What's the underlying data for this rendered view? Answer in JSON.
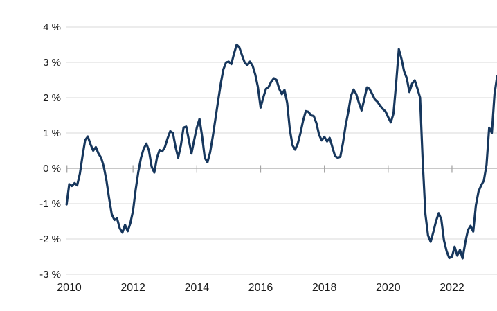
{
  "chart_data": {
    "type": "line",
    "title": "",
    "unit": "%",
    "grid": "horizontal",
    "legend": "none",
    "ylim": [
      -3,
      4
    ],
    "y_axis": {
      "tick_values": [
        4,
        3,
        2,
        1,
        0,
        -1,
        -2,
        -3
      ],
      "tick_labels": [
        "4 %",
        "3 %",
        "2 %",
        "1 %",
        "0 %",
        "-1 %",
        "-2 %",
        "-3 %"
      ]
    },
    "x_axis": {
      "tick_years": [
        2010,
        2012,
        2014,
        2016,
        2018,
        2020,
        2022
      ],
      "tick_labels": [
        "2010",
        "2012",
        "2014",
        "2016",
        "2018",
        "2020",
        "2022"
      ]
    },
    "colors": {
      "line": "#17375d",
      "gridline": "#d9d9d9",
      "axis": "#a6a6a6",
      "label": "#1a1a1a",
      "background": "#ffffff"
    },
    "series": [
      {
        "color": "#17375d",
        "frequency": "monthly",
        "start_month_offset": -1,
        "values": [
          -1.02,
          -0.45,
          -0.5,
          -0.42,
          -0.48,
          -0.15,
          0.35,
          0.8,
          0.9,
          0.68,
          0.5,
          0.6,
          0.42,
          0.3,
          0.05,
          -0.35,
          -0.85,
          -1.3,
          -1.46,
          -1.42,
          -1.7,
          -1.82,
          -1.6,
          -1.78,
          -1.55,
          -1.2,
          -0.6,
          -0.1,
          0.3,
          0.55,
          0.7,
          0.5,
          0.05,
          -0.12,
          0.3,
          0.52,
          0.48,
          0.6,
          0.85,
          1.05,
          1.0,
          0.6,
          0.3,
          0.65,
          1.15,
          1.18,
          0.8,
          0.42,
          0.8,
          1.15,
          1.4,
          0.9,
          0.3,
          0.17,
          0.45,
          0.9,
          1.4,
          1.9,
          2.4,
          2.8,
          3.0,
          3.02,
          2.95,
          3.25,
          3.5,
          3.42,
          3.2,
          3.0,
          2.92,
          3.02,
          2.9,
          2.65,
          2.3,
          1.72,
          2.0,
          2.25,
          2.3,
          2.45,
          2.55,
          2.5,
          2.25,
          2.1,
          2.22,
          1.85,
          1.1,
          0.65,
          0.53,
          0.7,
          1.0,
          1.35,
          1.62,
          1.6,
          1.5,
          1.48,
          1.28,
          0.95,
          0.79,
          0.89,
          0.76,
          0.86,
          0.6,
          0.35,
          0.3,
          0.33,
          0.72,
          1.22,
          1.6,
          2.05,
          2.23,
          2.1,
          1.85,
          1.64,
          1.95,
          2.29,
          2.25,
          2.1,
          1.95,
          1.88,
          1.77,
          1.68,
          1.61,
          1.45,
          1.3,
          1.55,
          2.4,
          3.37,
          3.1,
          2.75,
          2.55,
          2.16,
          2.4,
          2.49,
          2.26,
          2.0,
          0.2,
          -1.3,
          -1.9,
          -2.08,
          -1.8,
          -1.5,
          -1.27,
          -1.45,
          -2.04,
          -2.35,
          -2.54,
          -2.5,
          -2.22,
          -2.47,
          -2.31,
          -2.55,
          -2.1,
          -1.75,
          -1.63,
          -1.79,
          -1.05,
          -0.65,
          -0.48,
          -0.35,
          0.1,
          1.15,
          1.0,
          2.1,
          2.6,
          2.5
        ]
      }
    ]
  }
}
